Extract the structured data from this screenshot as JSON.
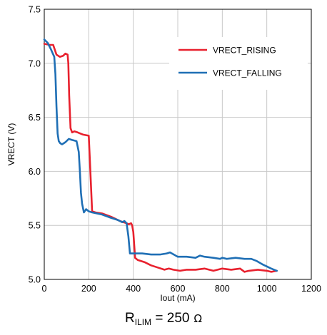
{
  "chart_data": {
    "type": "line",
    "xlabel": "Iout (mA)",
    "ylabel": "VRECT (V)",
    "xlim": [
      0,
      1200
    ],
    "ylim": [
      5.0,
      7.5
    ],
    "xticks": [
      0,
      200,
      400,
      600,
      800,
      1000,
      1200
    ],
    "yticks": [
      5.0,
      5.5,
      6.0,
      6.5,
      7.0,
      7.5
    ],
    "ytick_labels": [
      "5.0",
      "5.5",
      "6.0",
      "6.5",
      "7.0",
      "7.5"
    ],
    "grid": true,
    "legend_position": "top-right",
    "series": [
      {
        "name": "VRECT_RISING",
        "color": "#e8212e",
        "x": [
          0,
          25,
          40,
          55,
          70,
          85,
          95,
          105,
          108,
          112,
          118,
          125,
          135,
          150,
          175,
          200,
          205,
          215,
          230,
          260,
          300,
          340,
          370,
          380,
          390,
          395,
          400,
          408,
          420,
          450,
          480,
          510,
          540,
          560,
          580,
          610,
          640,
          680,
          720,
          760,
          800,
          840,
          880,
          900,
          920,
          960,
          1000,
          1020,
          1045
        ],
        "y": [
          7.18,
          7.17,
          7.17,
          7.08,
          7.06,
          7.07,
          7.09,
          7.08,
          7.0,
          6.7,
          6.4,
          6.36,
          6.37,
          6.36,
          6.34,
          6.33,
          6.1,
          5.63,
          5.62,
          5.61,
          5.58,
          5.54,
          5.52,
          5.51,
          5.52,
          5.5,
          5.44,
          5.2,
          5.18,
          5.16,
          5.13,
          5.11,
          5.09,
          5.1,
          5.09,
          5.08,
          5.09,
          5.09,
          5.1,
          5.08,
          5.1,
          5.09,
          5.1,
          5.07,
          5.08,
          5.09,
          5.08,
          5.07,
          5.08
        ]
      },
      {
        "name": "VRECT_FALLING",
        "color": "#1f6fb5",
        "x": [
          0,
          15,
          30,
          45,
          50,
          55,
          60,
          65,
          72,
          80,
          95,
          110,
          125,
          145,
          155,
          160,
          165,
          170,
          178,
          188,
          200,
          215,
          260,
          300,
          330,
          350,
          360,
          370,
          378,
          385,
          400,
          440,
          480,
          520,
          550,
          565,
          600,
          640,
          680,
          700,
          720,
          760,
          790,
          800,
          820,
          860,
          900,
          930,
          955,
          980,
          1000,
          1020,
          1045
        ],
        "y": [
          7.22,
          7.19,
          7.13,
          7.06,
          6.9,
          6.6,
          6.35,
          6.28,
          6.26,
          6.25,
          6.27,
          6.3,
          6.29,
          6.28,
          6.18,
          6.0,
          5.8,
          5.7,
          5.62,
          5.65,
          5.63,
          5.62,
          5.6,
          5.57,
          5.55,
          5.53,
          5.54,
          5.52,
          5.4,
          5.24,
          5.24,
          5.24,
          5.23,
          5.23,
          5.24,
          5.25,
          5.21,
          5.21,
          5.2,
          5.22,
          5.21,
          5.2,
          5.19,
          5.2,
          5.19,
          5.2,
          5.19,
          5.19,
          5.17,
          5.14,
          5.12,
          5.1,
          5.08
        ]
      }
    ]
  },
  "caption": {
    "prefix": "R",
    "subscript": "ILIM",
    "value": " = 250",
    "unit": "Ω"
  }
}
